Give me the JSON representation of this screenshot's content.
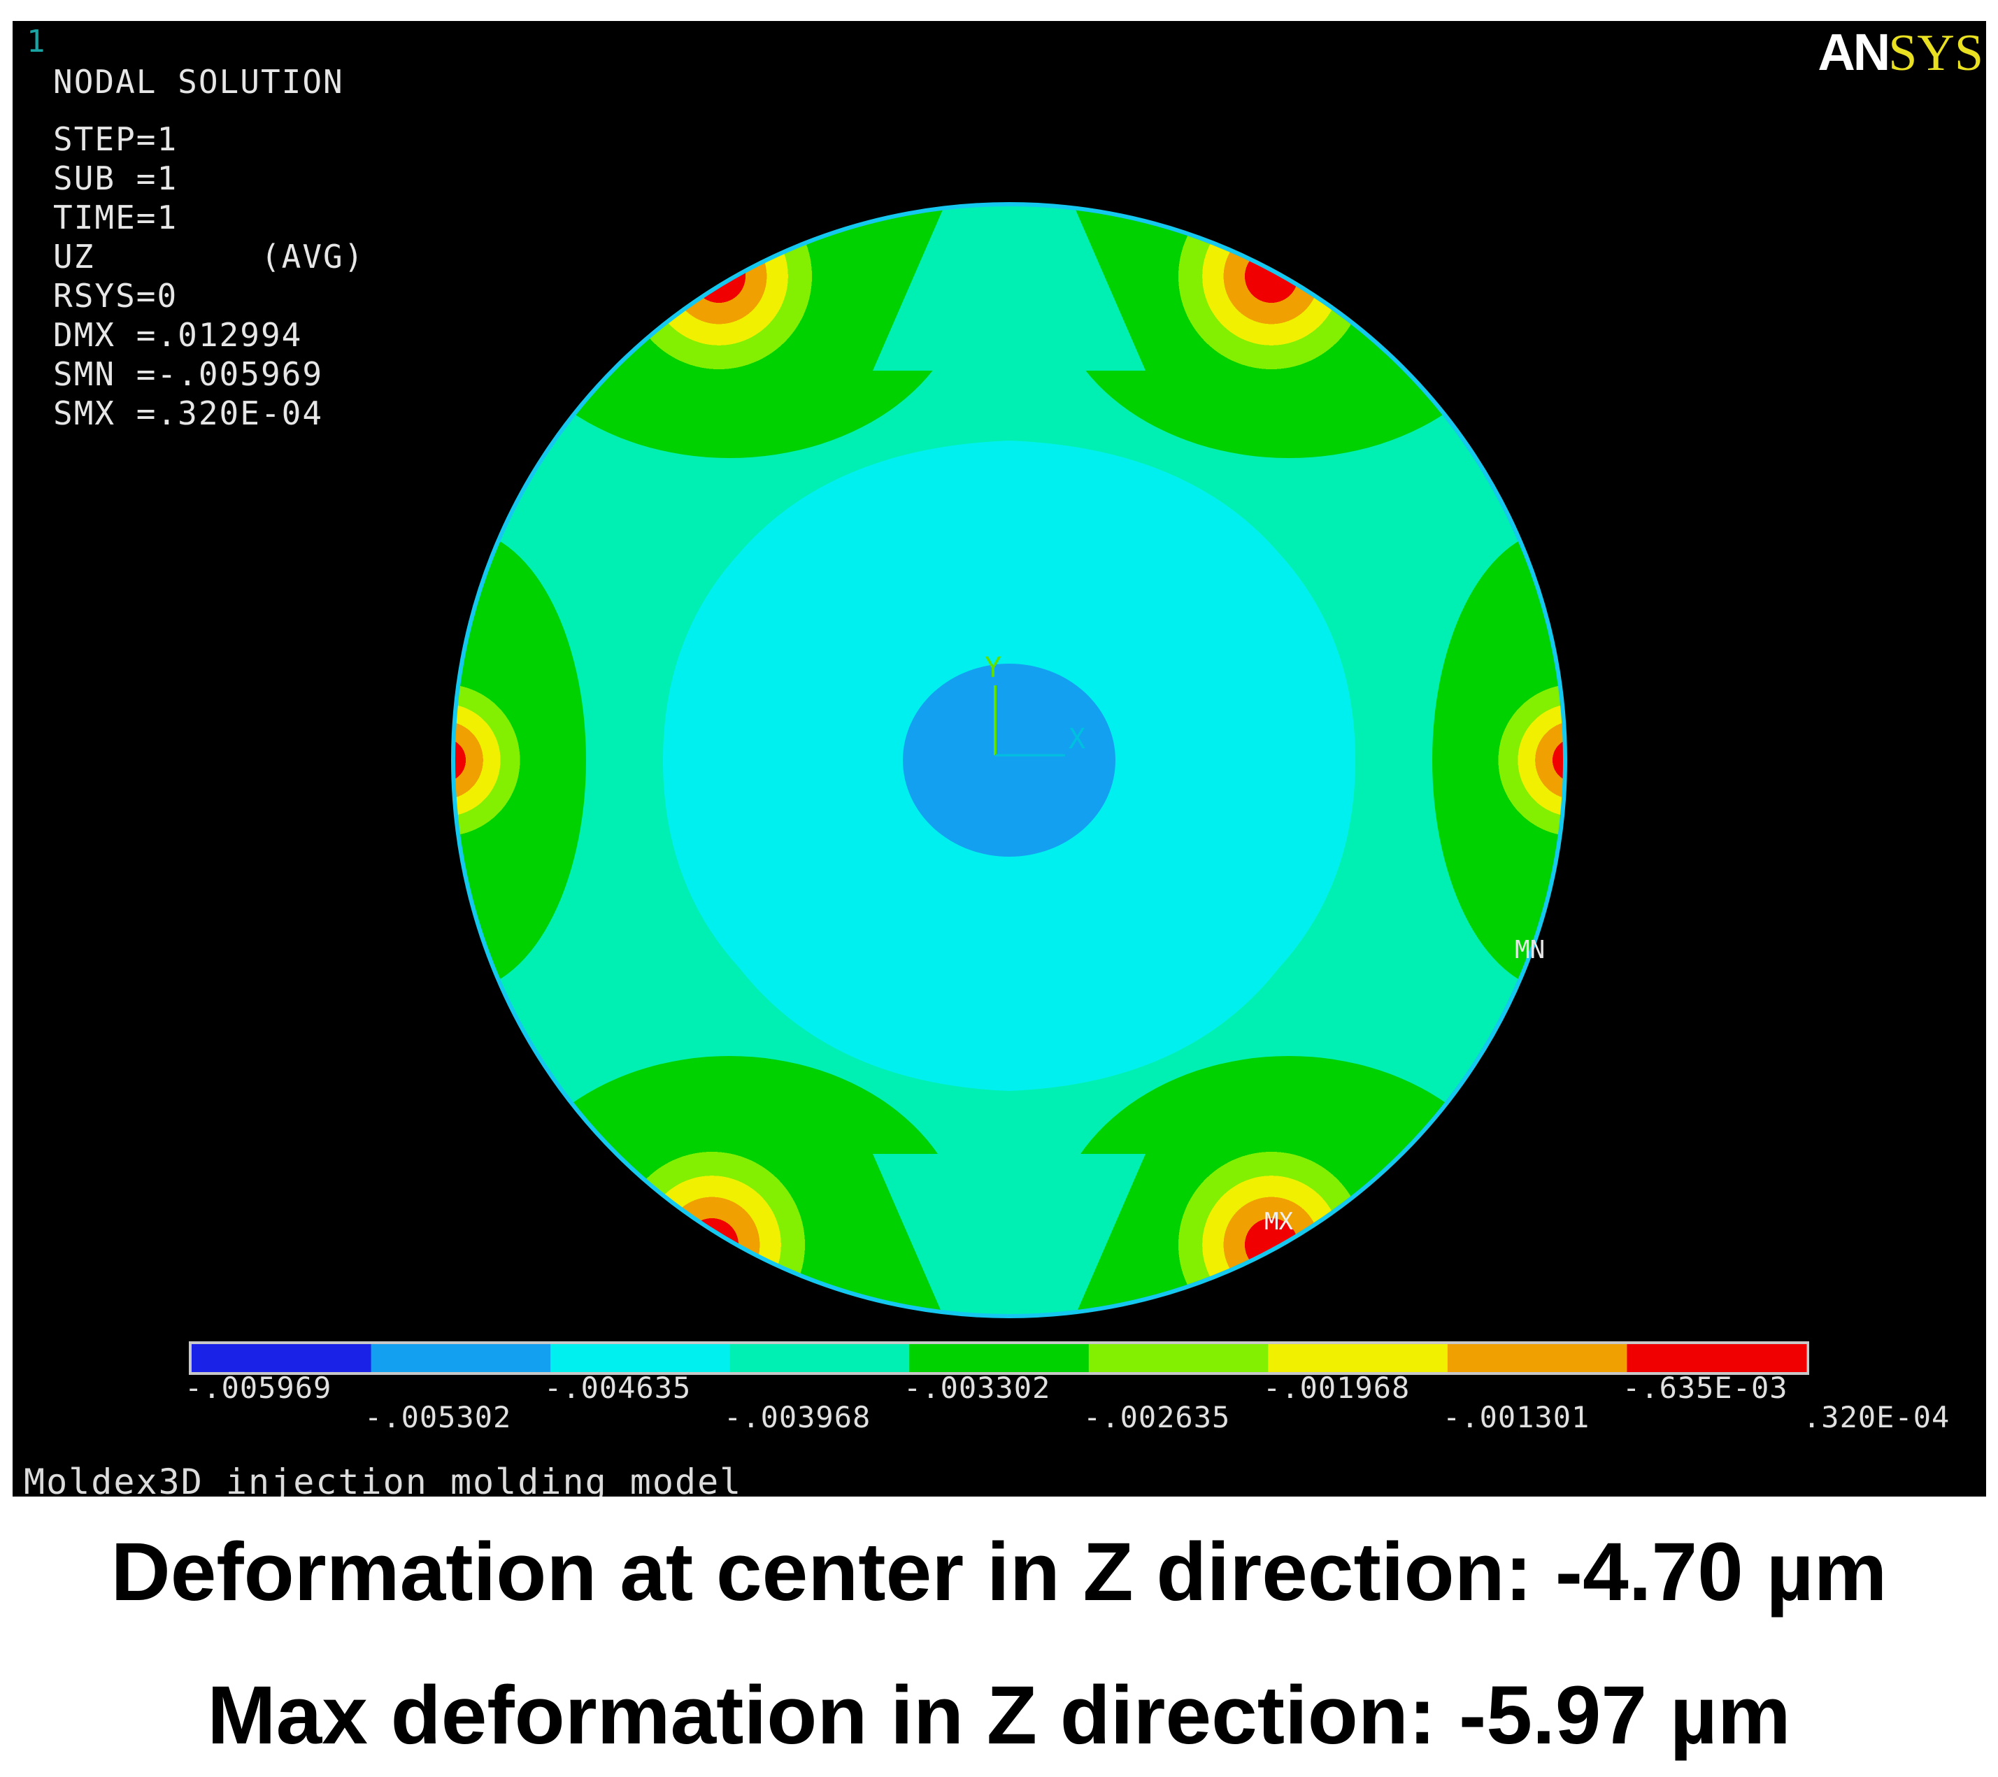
{
  "window_number": "1",
  "logo": {
    "an": "AN",
    "sys": "SYS"
  },
  "info": {
    "title": "NODAL SOLUTION",
    "lines": [
      "STEP=1",
      "SUB =1",
      "TIME=1",
      "UZ        (AVG)",
      "RSYS=0",
      "DMX =.012994",
      "SMN =-.005969",
      "SMX =.320E-04"
    ]
  },
  "markers": {
    "mn": "MN",
    "mx": "MX",
    "axis_x": "X",
    "axis_y": "Y"
  },
  "legend": {
    "colors": [
      "#1a22e8",
      "#14a0f0",
      "#00f0f0",
      "#00f0b4",
      "#00d200",
      "#82f000",
      "#f0f000",
      "#f0a000",
      "#f00000"
    ],
    "labels_top": [
      "-.005969",
      "-.004635",
      "-.003302",
      "-.001968",
      "-.635E-03"
    ],
    "labels_bottom": [
      "-.005302",
      "-.003968",
      "-.002635",
      "-.001301",
      ".320E-04"
    ]
  },
  "model_title": "Moldex3D injection molding model",
  "captions": {
    "center": "Deformation at center in Z direction: -4.70 µm",
    "max": "Max deformation in Z direction: -5.97 µm"
  }
}
